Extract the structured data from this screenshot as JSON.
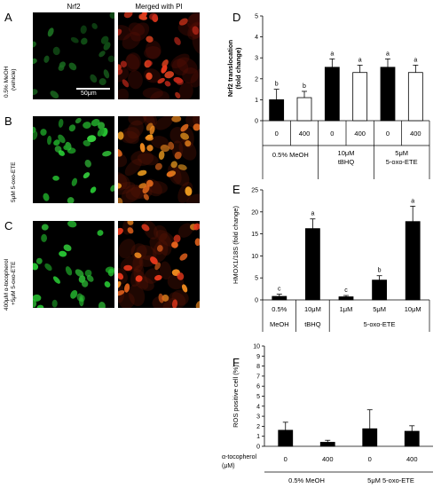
{
  "micrographs": {
    "col_headers": [
      "Nrf2",
      "Merged with PI"
    ],
    "rows": [
      {
        "letter": "A",
        "label_lines": [
          "0.5% MeOH",
          "(vehicle)"
        ]
      },
      {
        "letter": "B",
        "label_lines": [
          "5μM 5-oxo-ETE"
        ]
      },
      {
        "letter": "C",
        "label_lines": [
          "400μM α-tocopherol",
          "+5μM 5-oxo-ETE"
        ]
      }
    ],
    "scale_bar_label": "50μm",
    "colors": {
      "nrf2": "#27c232",
      "merged": "#e8381c",
      "merged_bright": "#f08a1e"
    }
  },
  "chart_data": [
    {
      "letter": "D",
      "type": "bar",
      "ylabel_lines": [
        "Nrf2 translocation",
        "(fold change)"
      ],
      "ylim": [
        0,
        5
      ],
      "yticks": [
        0,
        1,
        2,
        3,
        4,
        5
      ],
      "categories": [
        "0",
        "400",
        "0",
        "400",
        "0",
        "400"
      ],
      "values": [
        1.0,
        1.1,
        2.55,
        2.3,
        2.55,
        2.3
      ],
      "errors": [
        0.5,
        0.3,
        0.4,
        0.35,
        0.4,
        0.35
      ],
      "fills": [
        "#000000",
        "#ffffff",
        "#000000",
        "#ffffff",
        "#000000",
        "#ffffff"
      ],
      "letters": [
        "b",
        "b",
        "a",
        "a",
        "a",
        "a"
      ],
      "groups": [
        {
          "lines": [
            "0.5% MeOH"
          ],
          "start": 0,
          "end": 1
        },
        {
          "lines": [
            "10μM",
            "tBHQ"
          ],
          "start": 2,
          "end": 3
        },
        {
          "lines": [
            "5μM",
            "5-oxo-ETE"
          ],
          "start": 4,
          "end": 5
        }
      ]
    },
    {
      "letter": "E",
      "type": "bar",
      "ylabel": "HMOX1/18S  (fold change)",
      "ylim": [
        0,
        25
      ],
      "yticks": [
        0,
        5,
        10,
        15,
        20,
        25
      ],
      "categories": [
        "0.5%",
        "10μM",
        "1μM",
        "5μM",
        "10μM"
      ],
      "values": [
        0.8,
        16.2,
        0.7,
        4.5,
        17.8
      ],
      "errors": [
        0.5,
        2.2,
        0.3,
        1.0,
        3.5
      ],
      "fills": [
        "#000000",
        "#000000",
        "#000000",
        "#000000",
        "#000000"
      ],
      "letters": [
        "c",
        "a",
        "c",
        "b",
        "a"
      ],
      "groups": [
        {
          "lines": [
            "MeOH"
          ],
          "start": 0,
          "end": 0
        },
        {
          "lines": [
            "tBHQ"
          ],
          "start": 1,
          "end": 1
        },
        {
          "lines": [
            "5-oxo-ETE"
          ],
          "start": 2,
          "end": 4
        }
      ]
    },
    {
      "letter": "F",
      "type": "bar",
      "ylabel": "ROS positive cell (%)",
      "ylim": [
        0,
        10
      ],
      "yticks": [
        0,
        1,
        2,
        3,
        4,
        5,
        6,
        7,
        8,
        9,
        10
      ],
      "categories": [
        "0",
        "400",
        "0",
        "400"
      ],
      "values": [
        1.6,
        0.4,
        1.75,
        1.5
      ],
      "errors": [
        0.8,
        0.2,
        1.9,
        0.55
      ],
      "fills": [
        "#000000",
        "#000000",
        "#000000",
        "#000000"
      ],
      "letters": [
        "",
        "",
        "",
        ""
      ],
      "row_label_lines": [
        "α-tocopherol",
        "(μM)"
      ],
      "groups": [
        {
          "lines": [
            "0.5% MeOH"
          ],
          "start": 0,
          "end": 1
        },
        {
          "lines": [
            "5μM  5-oxo-ETE"
          ],
          "start": 2,
          "end": 3
        }
      ]
    }
  ]
}
